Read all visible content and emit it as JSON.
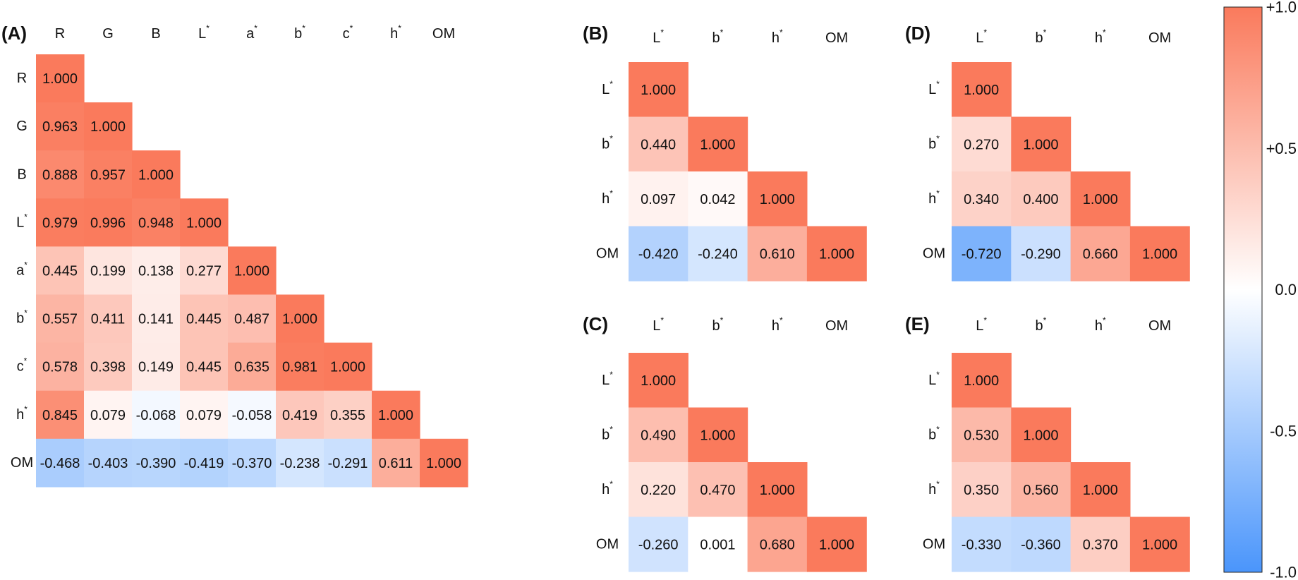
{
  "chart_data": [
    {
      "type": "heatmap",
      "panel_label": "(A)",
      "variables": [
        "R",
        "G",
        "B",
        "L",
        "a",
        "b",
        "c",
        "h",
        "OM"
      ],
      "starred": [
        false,
        false,
        false,
        true,
        true,
        true,
        true,
        true,
        false
      ],
      "lower_triangle": [
        [
          1.0
        ],
        [
          0.963,
          1.0
        ],
        [
          0.888,
          0.957,
          1.0
        ],
        [
          0.979,
          0.996,
          0.948,
          1.0
        ],
        [
          0.445,
          0.199,
          0.138,
          0.277,
          1.0
        ],
        [
          0.557,
          0.411,
          0.141,
          0.445,
          0.487,
          1.0
        ],
        [
          0.578,
          0.398,
          0.149,
          0.445,
          0.635,
          0.981,
          1.0
        ],
        [
          0.845,
          0.079,
          -0.068,
          0.079,
          -0.058,
          0.419,
          0.355,
          1.0
        ],
        [
          -0.468,
          -0.403,
          -0.39,
          -0.419,
          -0.37,
          -0.238,
          -0.291,
          0.611,
          1.0
        ]
      ]
    },
    {
      "type": "heatmap",
      "panel_label": "(B)",
      "variables": [
        "L",
        "b",
        "h",
        "OM"
      ],
      "starred": [
        true,
        true,
        true,
        false
      ],
      "lower_triangle": [
        [
          1.0
        ],
        [
          0.44,
          1.0
        ],
        [
          0.097,
          0.042,
          1.0
        ],
        [
          -0.42,
          -0.24,
          0.61,
          1.0
        ]
      ]
    },
    {
      "type": "heatmap",
      "panel_label": "(C)",
      "variables": [
        "L",
        "b",
        "h",
        "OM"
      ],
      "starred": [
        true,
        true,
        true,
        false
      ],
      "lower_triangle": [
        [
          1.0
        ],
        [
          0.49,
          1.0
        ],
        [
          0.22,
          0.47,
          1.0
        ],
        [
          -0.26,
          0.001,
          0.68,
          1.0
        ]
      ]
    },
    {
      "type": "heatmap",
      "panel_label": "(D)",
      "variables": [
        "L",
        "b",
        "h",
        "OM"
      ],
      "starred": [
        true,
        true,
        true,
        false
      ],
      "lower_triangle": [
        [
          1.0
        ],
        [
          0.27,
          1.0
        ],
        [
          0.34,
          0.4,
          1.0
        ],
        [
          -0.72,
          -0.29,
          0.66,
          1.0
        ]
      ]
    },
    {
      "type": "heatmap",
      "panel_label": "(E)",
      "variables": [
        "L",
        "b",
        "h",
        "OM"
      ],
      "starred": [
        true,
        true,
        true,
        false
      ],
      "lower_triangle": [
        [
          1.0
        ],
        [
          0.53,
          1.0
        ],
        [
          0.35,
          0.56,
          1.0
        ],
        [
          -0.33,
          -0.36,
          0.37,
          1.0
        ]
      ]
    }
  ],
  "colorbar": {
    "range": [
      -1.0,
      1.0
    ],
    "tick_labels": [
      "+1.0",
      "+0.5",
      "0.0",
      "-0.5",
      "-1.0"
    ],
    "tick_values": [
      1.0,
      0.5,
      0.0,
      -0.5,
      -1.0
    ],
    "color_max": "#fa7a5c",
    "color_mid": "#ffffff",
    "color_min": "#4a95fb"
  },
  "star_symbol": "*",
  "value_decimals": 3
}
